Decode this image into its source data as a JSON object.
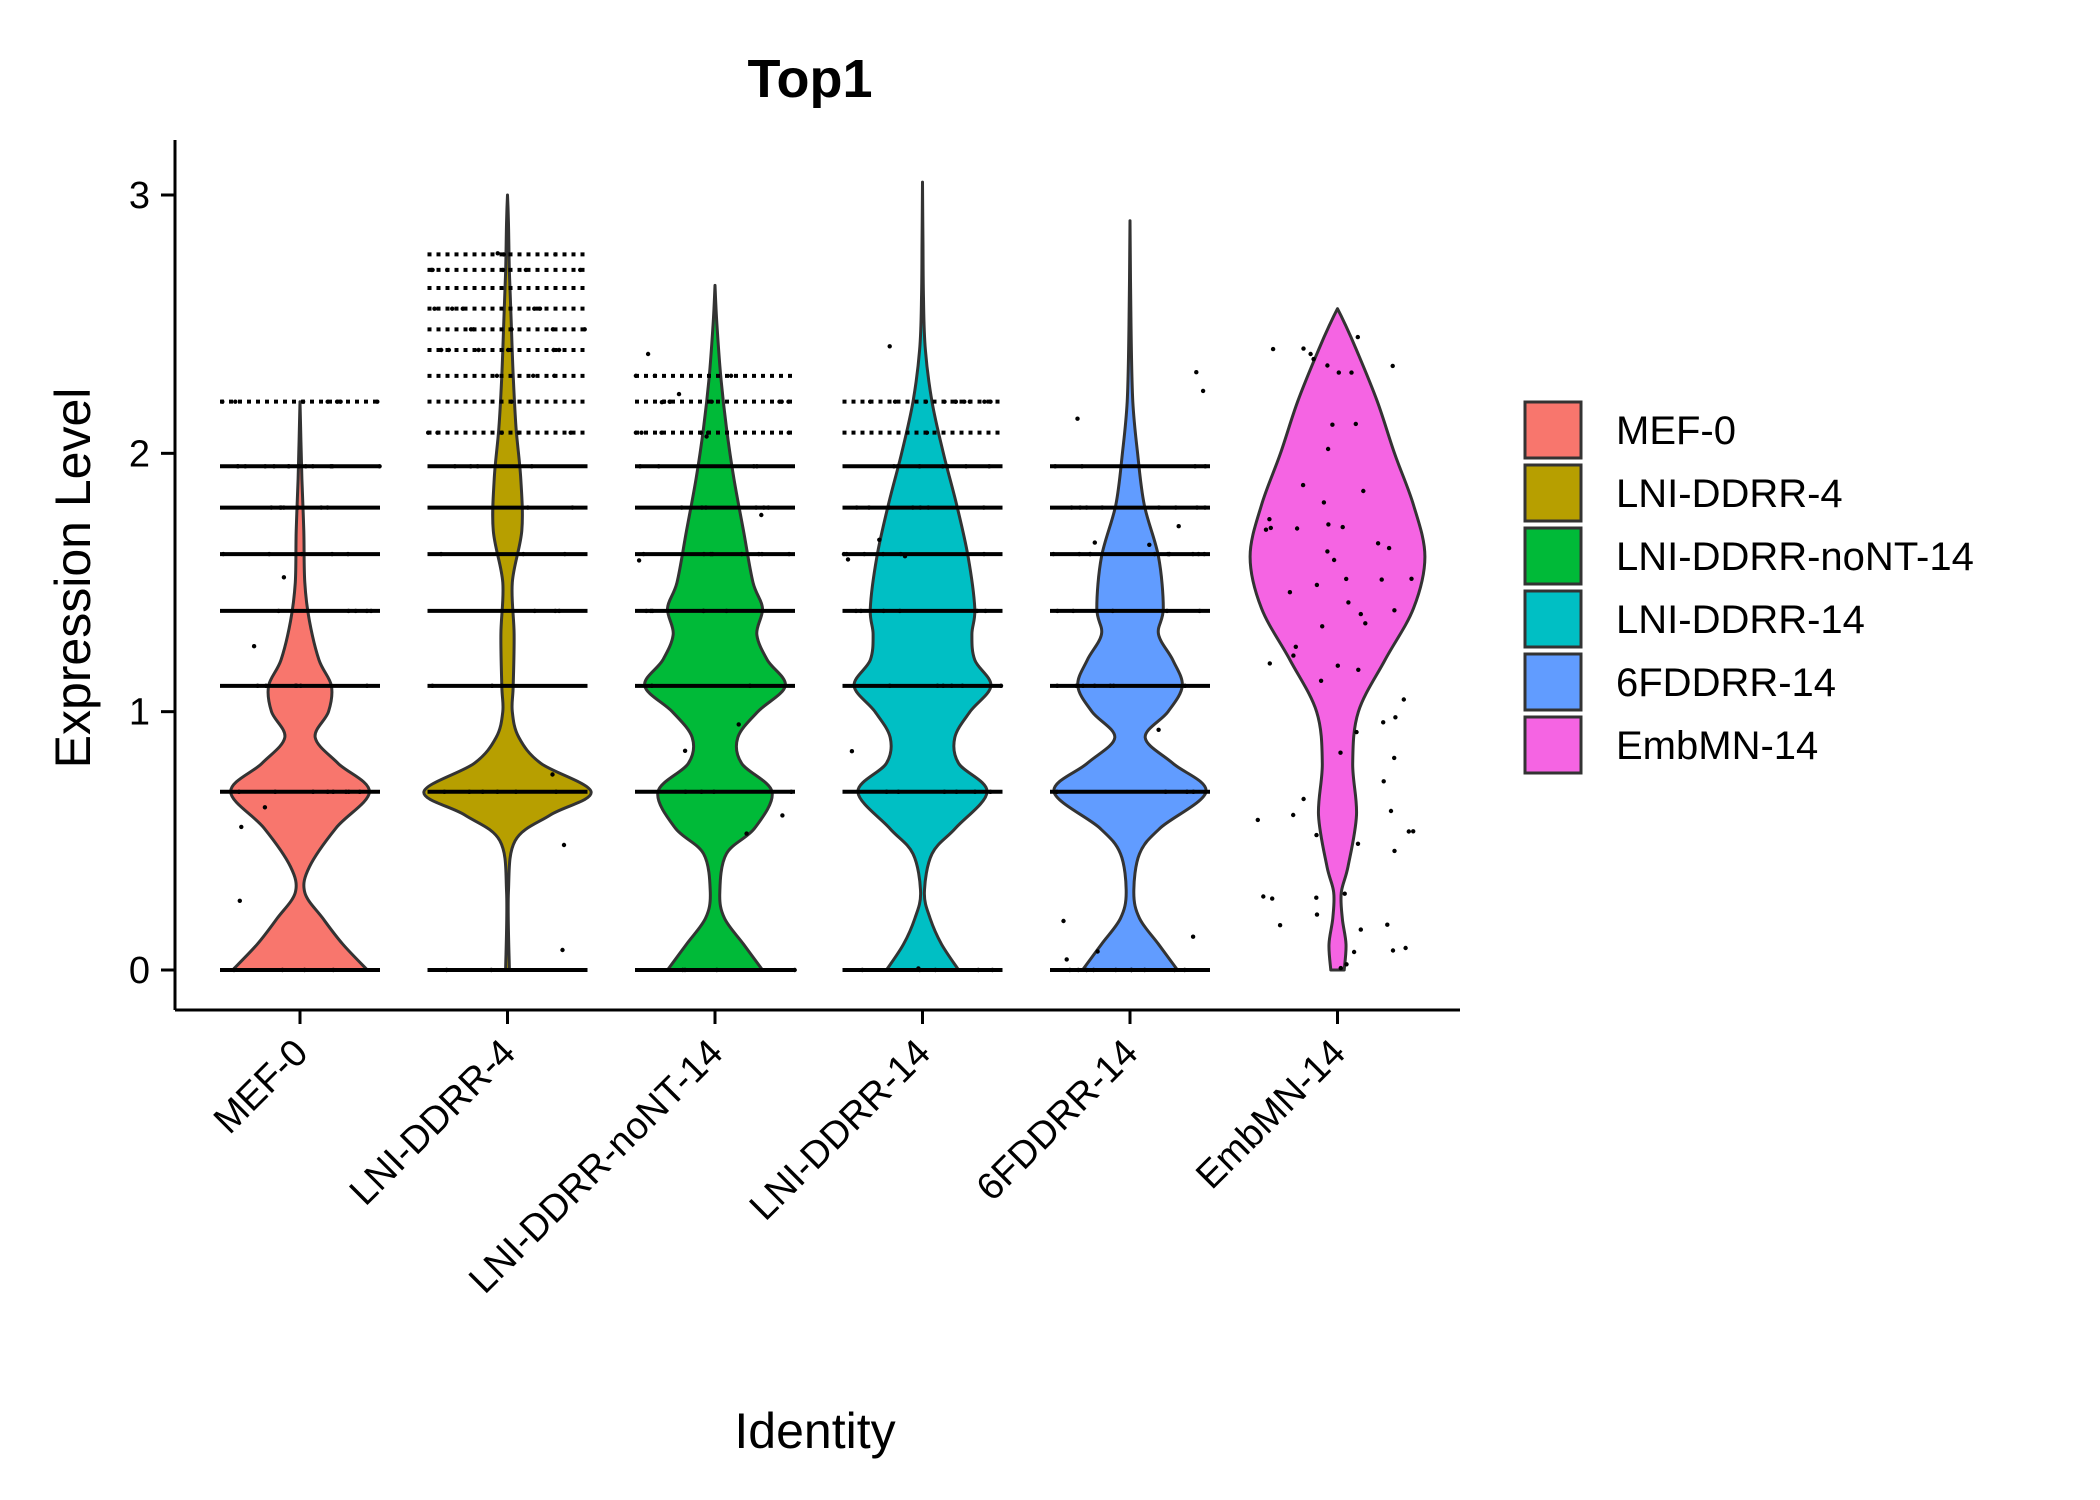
{
  "chart_data": {
    "type": "violin",
    "title": "Top1",
    "xlabel": "Identity",
    "ylabel": "Expression Level",
    "ylim": [
      -0.15,
      3.2
    ],
    "yticks": [
      0,
      1,
      2,
      3
    ],
    "categories": [
      "MEF-0",
      "LNI-DDRR-4",
      "LNI-DDRR-noNT-14",
      "LNI-DDRR-14",
      "6FDDRR-14",
      "EmbMN-14"
    ],
    "grid": false,
    "legend_position": "right",
    "series": [
      {
        "name": "MEF-0",
        "color": "#F8766D",
        "max": 2.2,
        "levels": [
          0,
          0.69,
          1.1,
          1.39,
          1.61,
          1.79,
          1.95,
          2.2
        ],
        "profile": [
          [
            0,
            0.71
          ],
          [
            0.1,
            0.45
          ],
          [
            0.2,
            0.24
          ],
          [
            0.3,
            0.05
          ],
          [
            0.4,
            0.1
          ],
          [
            0.55,
            0.38
          ],
          [
            0.69,
            0.73
          ],
          [
            0.8,
            0.4
          ],
          [
            0.9,
            0.16
          ],
          [
            1.0,
            0.3
          ],
          [
            1.1,
            0.33
          ],
          [
            1.2,
            0.2
          ],
          [
            1.35,
            0.1
          ],
          [
            1.5,
            0.05
          ],
          [
            1.7,
            0.04
          ],
          [
            1.9,
            0.02
          ],
          [
            2.05,
            0.01
          ],
          [
            2.2,
            0.0
          ]
        ]
      },
      {
        "name": "LNI-DDRR-4",
        "color": "#B79F00",
        "max": 3.0,
        "levels": [
          0,
          0.69,
          1.1,
          1.39,
          1.61,
          1.79,
          1.95,
          2.08,
          2.2,
          2.3,
          2.4,
          2.48,
          2.56,
          2.64,
          2.71,
          2.77
        ],
        "profile": [
          [
            0,
            0.02
          ],
          [
            0.3,
            0.01
          ],
          [
            0.5,
            0.08
          ],
          [
            0.6,
            0.45
          ],
          [
            0.69,
            0.88
          ],
          [
            0.8,
            0.35
          ],
          [
            0.9,
            0.12
          ],
          [
            1.0,
            0.05
          ],
          [
            1.1,
            0.06
          ],
          [
            1.3,
            0.07
          ],
          [
            1.5,
            0.05
          ],
          [
            1.7,
            0.15
          ],
          [
            1.9,
            0.14
          ],
          [
            2.1,
            0.09
          ],
          [
            2.3,
            0.06
          ],
          [
            2.5,
            0.04
          ],
          [
            2.7,
            0.02
          ],
          [
            2.9,
            0.01
          ],
          [
            3.0,
            0.0
          ]
        ]
      },
      {
        "name": "LNI-DDRR-noNT-14",
        "color": "#00BA38",
        "max": 2.65,
        "levels": [
          0,
          0.69,
          1.1,
          1.39,
          1.61,
          1.79,
          1.95,
          2.08,
          2.2,
          2.3
        ],
        "profile": [
          [
            0,
            0.5
          ],
          [
            0.1,
            0.3
          ],
          [
            0.2,
            0.1
          ],
          [
            0.3,
            0.05
          ],
          [
            0.45,
            0.12
          ],
          [
            0.55,
            0.42
          ],
          [
            0.69,
            0.6
          ],
          [
            0.8,
            0.28
          ],
          [
            0.9,
            0.24
          ],
          [
            1.0,
            0.45
          ],
          [
            1.1,
            0.74
          ],
          [
            1.2,
            0.55
          ],
          [
            1.3,
            0.44
          ],
          [
            1.4,
            0.5
          ],
          [
            1.5,
            0.4
          ],
          [
            1.7,
            0.3
          ],
          [
            1.9,
            0.2
          ],
          [
            2.1,
            0.12
          ],
          [
            2.3,
            0.06
          ],
          [
            2.5,
            0.02
          ],
          [
            2.65,
            0.0
          ]
        ]
      },
      {
        "name": "LNI-DDRR-14",
        "color": "#00BFC4",
        "max": 3.05,
        "levels": [
          0,
          0.69,
          1.1,
          1.39,
          1.61,
          1.79,
          1.95,
          2.08,
          2.2
        ],
        "profile": [
          [
            0,
            0.38
          ],
          [
            0.1,
            0.2
          ],
          [
            0.2,
            0.08
          ],
          [
            0.3,
            0.02
          ],
          [
            0.45,
            0.1
          ],
          [
            0.55,
            0.35
          ],
          [
            0.69,
            0.68
          ],
          [
            0.8,
            0.38
          ],
          [
            0.9,
            0.34
          ],
          [
            1.0,
            0.5
          ],
          [
            1.1,
            0.72
          ],
          [
            1.2,
            0.55
          ],
          [
            1.3,
            0.52
          ],
          [
            1.4,
            0.55
          ],
          [
            1.6,
            0.48
          ],
          [
            1.8,
            0.36
          ],
          [
            2.0,
            0.22
          ],
          [
            2.2,
            0.1
          ],
          [
            2.4,
            0.03
          ],
          [
            2.6,
            0.01
          ],
          [
            2.8,
            0.005
          ],
          [
            3.05,
            0.0
          ]
        ]
      },
      {
        "name": "6FDDRR-14",
        "color": "#619CFF",
        "max": 2.9,
        "levels": [
          0,
          0.69,
          1.1,
          1.39,
          1.61,
          1.79,
          1.95
        ],
        "profile": [
          [
            0,
            0.5
          ],
          [
            0.1,
            0.3
          ],
          [
            0.2,
            0.1
          ],
          [
            0.3,
            0.04
          ],
          [
            0.45,
            0.1
          ],
          [
            0.55,
            0.32
          ],
          [
            0.69,
            0.8
          ],
          [
            0.8,
            0.45
          ],
          [
            0.9,
            0.16
          ],
          [
            1.0,
            0.4
          ],
          [
            1.1,
            0.55
          ],
          [
            1.2,
            0.45
          ],
          [
            1.3,
            0.3
          ],
          [
            1.4,
            0.35
          ],
          [
            1.6,
            0.3
          ],
          [
            1.8,
            0.15
          ],
          [
            2.0,
            0.08
          ],
          [
            2.2,
            0.03
          ],
          [
            2.5,
            0.01
          ],
          [
            2.9,
            0.0
          ]
        ]
      },
      {
        "name": "EmbMN-14",
        "color": "#F564E3",
        "max": 2.56,
        "levels": [],
        "profile": [
          [
            0,
            0.07
          ],
          [
            0.1,
            0.09
          ],
          [
            0.2,
            0.05
          ],
          [
            0.3,
            0.04
          ],
          [
            0.4,
            0.11
          ],
          [
            0.6,
            0.2
          ],
          [
            0.8,
            0.16
          ],
          [
            1.0,
            0.22
          ],
          [
            1.2,
            0.5
          ],
          [
            1.4,
            0.8
          ],
          [
            1.6,
            0.92
          ],
          [
            1.8,
            0.8
          ],
          [
            2.0,
            0.6
          ],
          [
            2.2,
            0.42
          ],
          [
            2.4,
            0.2
          ],
          [
            2.5,
            0.08
          ],
          [
            2.56,
            0.0
          ]
        ]
      }
    ]
  }
}
